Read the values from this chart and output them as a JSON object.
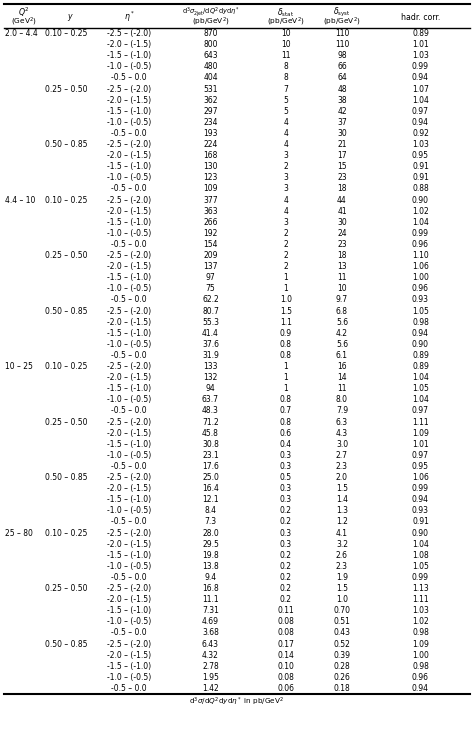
{
  "rows": [
    [
      "2.0 – 4.4",
      "0.10 – 0.25",
      "-2.5 – (-2.0)",
      "870",
      "10",
      "110",
      "0.89"
    ],
    [
      "",
      "",
      "-2.0 – (-1.5)",
      "800",
      "10",
      "110",
      "1.01"
    ],
    [
      "",
      "",
      "-1.5 – (-1.0)",
      "643",
      "11",
      "98",
      "1.03"
    ],
    [
      "",
      "",
      "-1.0 – (-0.5)",
      "480",
      "8",
      "66",
      "0.99"
    ],
    [
      "",
      "",
      "-0.5 – 0.0",
      "404",
      "8",
      "64",
      "0.94"
    ],
    [
      "",
      "0.25 – 0.50",
      "-2.5 – (-2.0)",
      "531",
      "7",
      "48",
      "1.07"
    ],
    [
      "",
      "",
      "-2.0 – (-1.5)",
      "362",
      "5",
      "38",
      "1.04"
    ],
    [
      "",
      "",
      "-1.5 – (-1.0)",
      "297",
      "5",
      "42",
      "0.97"
    ],
    [
      "",
      "",
      "-1.0 – (-0.5)",
      "234",
      "4",
      "37",
      "0.94"
    ],
    [
      "",
      "",
      "-0.5 – 0.0",
      "193",
      "4",
      "30",
      "0.92"
    ],
    [
      "",
      "0.50 – 0.85",
      "-2.5 – (-2.0)",
      "224",
      "4",
      "21",
      "1.03"
    ],
    [
      "",
      "",
      "-2.0 – (-1.5)",
      "168",
      "3",
      "17",
      "0.95"
    ],
    [
      "",
      "",
      "-1.5 – (-1.0)",
      "130",
      "2",
      "15",
      "0.91"
    ],
    [
      "",
      "",
      "-1.0 – (-0.5)",
      "123",
      "3",
      "23",
      "0.91"
    ],
    [
      "",
      "",
      "-0.5 – 0.0",
      "109",
      "3",
      "18",
      "0.88"
    ],
    [
      "4.4 – 10",
      "0.10 – 0.25",
      "-2.5 – (-2.0)",
      "377",
      "4",
      "44",
      "0.90"
    ],
    [
      "",
      "",
      "-2.0 – (-1.5)",
      "363",
      "4",
      "41",
      "1.02"
    ],
    [
      "",
      "",
      "-1.5 – (-1.0)",
      "266",
      "3",
      "30",
      "1.04"
    ],
    [
      "",
      "",
      "-1.0 – (-0.5)",
      "192",
      "2",
      "24",
      "0.99"
    ],
    [
      "",
      "",
      "-0.5 – 0.0",
      "154",
      "2",
      "23",
      "0.96"
    ],
    [
      "",
      "0.25 – 0.50",
      "-2.5 – (-2.0)",
      "209",
      "2",
      "18",
      "1.10"
    ],
    [
      "",
      "",
      "-2.0 – (-1.5)",
      "137",
      "2",
      "13",
      "1.06"
    ],
    [
      "",
      "",
      "-1.5 – (-1.0)",
      "97",
      "1",
      "11",
      "1.00"
    ],
    [
      "",
      "",
      "-1.0 – (-0.5)",
      "75",
      "1",
      "10",
      "0.96"
    ],
    [
      "",
      "",
      "-0.5 – 0.0",
      "62.2",
      "1.0",
      "9.7",
      "0.93"
    ],
    [
      "",
      "0.50 – 0.85",
      "-2.5 – (-2.0)",
      "80.7",
      "1.5",
      "6.8",
      "1.05"
    ],
    [
      "",
      "",
      "-2.0 – (-1.5)",
      "55.3",
      "1.1",
      "5.6",
      "0.98"
    ],
    [
      "",
      "",
      "-1.5 – (-1.0)",
      "41.4",
      "0.9",
      "4.2",
      "0.94"
    ],
    [
      "",
      "",
      "-1.0 – (-0.5)",
      "37.6",
      "0.8",
      "5.6",
      "0.90"
    ],
    [
      "",
      "",
      "-0.5 – 0.0",
      "31.9",
      "0.8",
      "6.1",
      "0.89"
    ],
    [
      "10 – 25",
      "0.10 – 0.25",
      "-2.5 – (-2.0)",
      "133",
      "1",
      "16",
      "0.89"
    ],
    [
      "",
      "",
      "-2.0 – (-1.5)",
      "132",
      "1",
      "14",
      "1.04"
    ],
    [
      "",
      "",
      "-1.5 – (-1.0)",
      "94",
      "1",
      "11",
      "1.05"
    ],
    [
      "",
      "",
      "-1.0 – (-0.5)",
      "63.7",
      "0.8",
      "8.0",
      "1.04"
    ],
    [
      "",
      "",
      "-0.5 – 0.0",
      "48.3",
      "0.7",
      "7.9",
      "0.97"
    ],
    [
      "",
      "0.25 – 0.50",
      "-2.5 – (-2.0)",
      "71.2",
      "0.8",
      "6.3",
      "1.11"
    ],
    [
      "",
      "",
      "-2.0 – (-1.5)",
      "45.8",
      "0.6",
      "4.3",
      "1.09"
    ],
    [
      "",
      "",
      "-1.5 – (-1.0)",
      "30.8",
      "0.4",
      "3.0",
      "1.01"
    ],
    [
      "",
      "",
      "-1.0 – (-0.5)",
      "23.1",
      "0.3",
      "2.7",
      "0.97"
    ],
    [
      "",
      "",
      "-0.5 – 0.0",
      "17.6",
      "0.3",
      "2.3",
      "0.95"
    ],
    [
      "",
      "0.50 – 0.85",
      "-2.5 – (-2.0)",
      "25.0",
      "0.5",
      "2.0",
      "1.06"
    ],
    [
      "",
      "",
      "-2.0 – (-1.5)",
      "16.4",
      "0.3",
      "1.5",
      "0.99"
    ],
    [
      "",
      "",
      "-1.5 – (-1.0)",
      "12.1",
      "0.3",
      "1.4",
      "0.94"
    ],
    [
      "",
      "",
      "-1.0 – (-0.5)",
      "8.4",
      "0.2",
      "1.3",
      "0.93"
    ],
    [
      "",
      "",
      "-0.5 – 0.0",
      "7.3",
      "0.2",
      "1.2",
      "0.91"
    ],
    [
      "25 – 80",
      "0.10 – 0.25",
      "-2.5 – (-2.0)",
      "28.0",
      "0.3",
      "4.1",
      "0.90"
    ],
    [
      "",
      "",
      "-2.0 – (-1.5)",
      "29.5",
      "0.3",
      "3.2",
      "1.04"
    ],
    [
      "",
      "",
      "-1.5 – (-1.0)",
      "19.8",
      "0.2",
      "2.6",
      "1.08"
    ],
    [
      "",
      "",
      "-1.0 – (-0.5)",
      "13.8",
      "0.2",
      "2.3",
      "1.05"
    ],
    [
      "",
      "",
      "-0.5 – 0.0",
      "9.4",
      "0.2",
      "1.9",
      "0.99"
    ],
    [
      "",
      "0.25 – 0.50",
      "-2.5 – (-2.0)",
      "16.8",
      "0.2",
      "1.5",
      "1.13"
    ],
    [
      "",
      "",
      "-2.0 – (-1.5)",
      "11.1",
      "0.2",
      "1.0",
      "1.11"
    ],
    [
      "",
      "",
      "-1.5 – (-1.0)",
      "7.31",
      "0.11",
      "0.70",
      "1.03"
    ],
    [
      "",
      "",
      "-1.0 – (-0.5)",
      "4.69",
      "0.08",
      "0.51",
      "1.02"
    ],
    [
      "",
      "",
      "-0.5 – 0.0",
      "3.68",
      "0.08",
      "0.43",
      "0.98"
    ],
    [
      "",
      "0.50 – 0.85",
      "-2.5 – (-2.0)",
      "6.43",
      "0.17",
      "0.52",
      "1.09"
    ],
    [
      "",
      "",
      "-2.0 – (-1.5)",
      "4.32",
      "0.14",
      "0.39",
      "1.00"
    ],
    [
      "",
      "",
      "-1.5 – (-1.0)",
      "2.78",
      "0.10",
      "0.28",
      "0.98"
    ],
    [
      "",
      "",
      "-1.0 – (-0.5)",
      "1.95",
      "0.08",
      "0.26",
      "0.96"
    ],
    [
      "",
      "",
      "-0.5 – 0.0",
      "1.42",
      "0.06",
      "0.18",
      "0.94"
    ]
  ],
  "figsize": [
    4.74,
    7.45
  ],
  "dpi": 100,
  "fontsize": 5.5,
  "header_fontsize": 5.6,
  "bg_color": "#ffffff"
}
